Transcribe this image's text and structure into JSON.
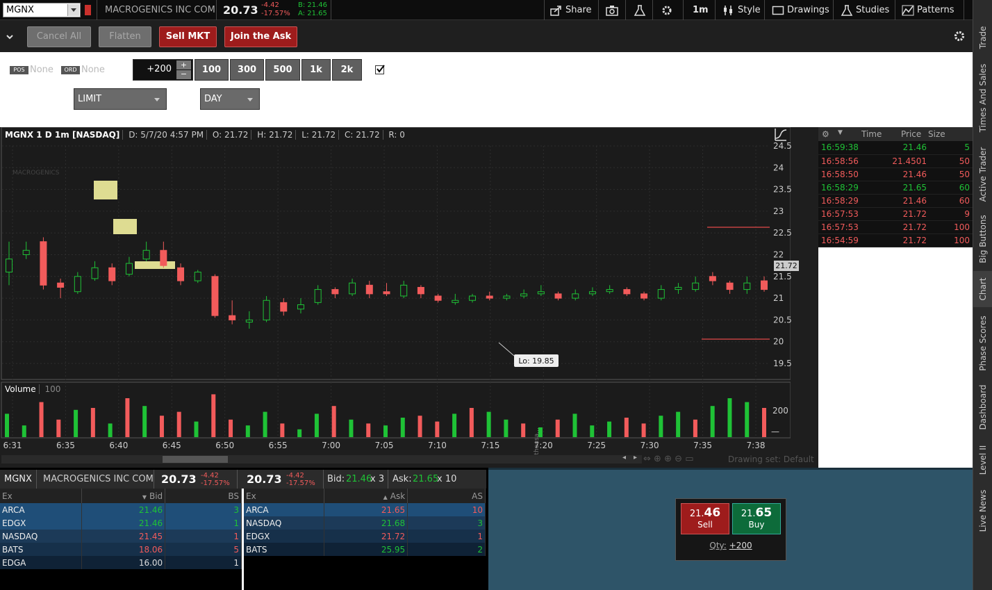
{
  "topbar": {
    "symbol": "MGNX",
    "company": "MACROGENICS INC COM",
    "last": "20.73",
    "change": "-4.42",
    "change_pct": "-17.57%",
    "bid_label": "B: 21.46",
    "ask_label": "A: 21.65",
    "share": "Share",
    "interval": "1m",
    "style": "Style",
    "drawings": "Drawings",
    "studies": "Studies",
    "patterns": "Patterns"
  },
  "order": {
    "cancel_all": "Cancel All",
    "flatten": "Flatten",
    "sell_mkt": "Sell MKT",
    "join_ask": "Join the Ask",
    "pos_tag": "POS",
    "pos_value": "None",
    "ord_tag": "ORD",
    "ord_value": "None",
    "qty": "+200",
    "qty_buttons": [
      "100",
      "300",
      "500",
      "1k",
      "2k"
    ],
    "order_type": "LIMIT",
    "tif": "DAY"
  },
  "chart": {
    "header": {
      "title": "MGNX 1 D 1m [NASDAQ]",
      "date": "D: 5/7/20 4:57 PM",
      "open": "O: 21.72",
      "high": "H: 21.72",
      "low": "L: 21.72",
      "close": "C: 21.72",
      "range": "R: 0"
    },
    "watermark": "MACROGENICS",
    "price_label": "21.72",
    "low_label": "Lo: 19.85",
    "volume_label": "Volume",
    "volume_value": "100",
    "volume_axis_label": "<thousa...",
    "volume_tick": "200",
    "drawing_set": "Drawing set: Default"
  },
  "chart_data": {
    "type": "candlestick",
    "y_ticks": [
      "24.5",
      "24",
      "23.5",
      "23",
      "22.5",
      "22",
      "21.5",
      "21",
      "20.5",
      "20",
      "19.5"
    ],
    "x_ticks": [
      "6:31",
      "6:35",
      "6:40",
      "6:45",
      "6:50",
      "6:55",
      "7:00",
      "7:05",
      "7:10",
      "7:15",
      "7:20",
      "7:25",
      "7:30",
      "7:35",
      "7:38"
    ],
    "candles": [
      {
        "o": 21.6,
        "c": 21.9,
        "h": 22.3,
        "l": 21.3
      },
      {
        "o": 22.0,
        "c": 22.1,
        "h": 22.3,
        "l": 21.9
      },
      {
        "o": 22.3,
        "c": 21.3,
        "h": 22.4,
        "l": 21.2
      },
      {
        "o": 21.35,
        "c": 21.25,
        "h": 21.45,
        "l": 21.0
      },
      {
        "o": 21.15,
        "c": 21.5,
        "h": 21.6,
        "l": 21.1
      },
      {
        "o": 21.45,
        "c": 21.7,
        "h": 21.85,
        "l": 21.4
      },
      {
        "o": 21.7,
        "c": 21.4,
        "h": 21.8,
        "l": 21.3
      },
      {
        "o": 21.55,
        "c": 21.8,
        "h": 21.95,
        "l": 21.5
      },
      {
        "o": 21.9,
        "c": 22.1,
        "h": 22.3,
        "l": 21.85
      },
      {
        "o": 22.1,
        "c": 21.75,
        "h": 22.3,
        "l": 21.7
      },
      {
        "o": 21.7,
        "c": 21.4,
        "h": 21.8,
        "l": 21.3
      },
      {
        "o": 21.4,
        "c": 21.6,
        "h": 21.65,
        "l": 21.35
      },
      {
        "o": 21.5,
        "c": 20.6,
        "h": 21.55,
        "l": 20.55
      },
      {
        "o": 20.6,
        "c": 20.5,
        "h": 20.95,
        "l": 20.4
      },
      {
        "o": 20.45,
        "c": 20.5,
        "h": 20.7,
        "l": 20.3
      },
      {
        "o": 20.5,
        "c": 20.95,
        "h": 21.05,
        "l": 20.45
      },
      {
        "o": 20.9,
        "c": 20.7,
        "h": 21.0,
        "l": 20.6
      },
      {
        "o": 20.75,
        "c": 20.85,
        "h": 21.0,
        "l": 20.65
      },
      {
        "o": 20.9,
        "c": 21.2,
        "h": 21.3,
        "l": 20.85
      },
      {
        "o": 21.2,
        "c": 21.1,
        "h": 21.25,
        "l": 21.0
      },
      {
        "o": 21.1,
        "c": 21.35,
        "h": 21.45,
        "l": 21.05
      },
      {
        "o": 21.3,
        "c": 21.1,
        "h": 21.4,
        "l": 21.0
      },
      {
        "o": 21.15,
        "c": 21.1,
        "h": 21.35,
        "l": 21.05
      },
      {
        "o": 21.05,
        "c": 21.3,
        "h": 21.4,
        "l": 21.0
      },
      {
        "o": 21.25,
        "c": 21.1,
        "h": 21.3,
        "l": 21.0
      },
      {
        "o": 21.05,
        "c": 20.95,
        "h": 21.1,
        "l": 20.9
      },
      {
        "o": 20.9,
        "c": 20.95,
        "h": 21.1,
        "l": 20.85
      },
      {
        "o": 20.95,
        "c": 21.05,
        "h": 21.1,
        "l": 20.9
      },
      {
        "o": 21.05,
        "c": 21.0,
        "h": 21.15,
        "l": 20.95
      },
      {
        "o": 21.0,
        "c": 21.05,
        "h": 21.1,
        "l": 20.95
      },
      {
        "o": 21.05,
        "c": 21.1,
        "h": 21.2,
        "l": 21.0
      },
      {
        "o": 21.1,
        "c": 21.15,
        "h": 21.3,
        "l": 21.05
      },
      {
        "o": 21.1,
        "c": 21.0,
        "h": 21.15,
        "l": 20.95
      },
      {
        "o": 21.0,
        "c": 21.1,
        "h": 21.2,
        "l": 20.95
      },
      {
        "o": 21.1,
        "c": 21.15,
        "h": 21.25,
        "l": 21.05
      },
      {
        "o": 21.15,
        "c": 21.2,
        "h": 21.3,
        "l": 21.1
      },
      {
        "o": 21.2,
        "c": 21.1,
        "h": 21.25,
        "l": 21.05
      },
      {
        "o": 21.1,
        "c": 21.0,
        "h": 21.15,
        "l": 20.95
      },
      {
        "o": 21.0,
        "c": 21.2,
        "h": 21.3,
        "l": 20.95
      },
      {
        "o": 21.2,
        "c": 21.25,
        "h": 21.35,
        "l": 21.1
      },
      {
        "o": 21.2,
        "c": 21.35,
        "h": 21.5,
        "l": 21.15
      },
      {
        "o": 21.5,
        "c": 21.4,
        "h": 21.6,
        "l": 21.3
      },
      {
        "o": 21.35,
        "c": 21.2,
        "h": 21.4,
        "l": 21.1
      },
      {
        "o": 21.2,
        "c": 21.35,
        "h": 21.5,
        "l": 21.1
      },
      {
        "o": 21.4,
        "c": 21.2,
        "h": 21.5,
        "l": 21.15
      }
    ],
    "volume_max": 200,
    "volumes": [
      120,
      60,
      180,
      90,
      140,
      150,
      70,
      200,
      160,
      110,
      130,
      80,
      220,
      90,
      60,
      130,
      70,
      40,
      120,
      160,
      90,
      70,
      60,
      100,
      110,
      80,
      120,
      150,
      130,
      90,
      70,
      50,
      90,
      120,
      60,
      80,
      100,
      70,
      110,
      130,
      90,
      160,
      200,
      180,
      150
    ],
    "volume_colors": [
      "up",
      "up",
      "down",
      "down",
      "up",
      "down",
      "up",
      "down",
      "up",
      "down",
      "down",
      "up",
      "down",
      "down",
      "up",
      "up",
      "down",
      "up",
      "up",
      "down",
      "up",
      "down",
      "up",
      "up",
      "down",
      "down",
      "up",
      "down",
      "up",
      "up",
      "down",
      "up",
      "down",
      "up",
      "up",
      "up",
      "down",
      "down",
      "up",
      "up",
      "down",
      "up",
      "up",
      "up",
      "down"
    ],
    "up_color": "#1fc236",
    "down_color": "#f25b5b"
  },
  "time_sales": {
    "headers": [
      "Time",
      "Price",
      "Size"
    ],
    "rows": [
      {
        "time": "16:59:38",
        "price": "21.46",
        "size": "5",
        "color": "#1fc236"
      },
      {
        "time": "16:58:56",
        "price": "21.4501",
        "size": "50",
        "color": "#f25b5b"
      },
      {
        "time": "16:58:50",
        "price": "21.46",
        "size": "50",
        "color": "#f25b5b"
      },
      {
        "time": "16:58:29",
        "price": "21.65",
        "size": "60",
        "color": "#1fc236"
      },
      {
        "time": "16:58:29",
        "price": "21.46",
        "size": "60",
        "color": "#f25b5b"
      },
      {
        "time": "16:57:53",
        "price": "21.72",
        "size": "9",
        "color": "#f25b5b"
      },
      {
        "time": "16:57:53",
        "price": "21.72",
        "size": "100",
        "color": "#f25b5b"
      },
      {
        "time": "16:54:59",
        "price": "21.72",
        "size": "100",
        "color": "#f25b5b"
      }
    ]
  },
  "level2": {
    "symbol": "MGNX",
    "company": "MACROGENICS INC COM",
    "last": "20.73",
    "change": "-4.42",
    "change_pct": "-17.57%",
    "last2": "20.73",
    "change2": "-4.42",
    "change_pct2": "-17.57%",
    "bid_text": "Bid:",
    "bid_price": "21.46",
    "bid_size": "x 3",
    "ask_text": "Ask:",
    "ask_price": "21.65",
    "ask_size": "x 10",
    "bid_headers": [
      "Ex",
      "Bid",
      "BS"
    ],
    "ask_headers": [
      "Ex",
      "Ask",
      "AS"
    ],
    "bids": [
      {
        "ex": "ARCA",
        "price": "21.46",
        "size": "3",
        "color": "#1fc236",
        "bg": "#1f4e78"
      },
      {
        "ex": "EDGX",
        "price": "21.46",
        "size": "1",
        "color": "#1fc236",
        "bg": "#1f4e78"
      },
      {
        "ex": "NASDAQ",
        "price": "21.45",
        "size": "1",
        "color": "#f25b5b",
        "bg": "#1c3a58"
      },
      {
        "ex": "BATS",
        "price": "18.06",
        "size": "5",
        "color": "#f25b5b",
        "bg": "#16304a"
      },
      {
        "ex": "EDGA",
        "price": "16.00",
        "size": "1",
        "color": "#dddddd",
        "bg": "#0f2236"
      }
    ],
    "asks": [
      {
        "ex": "ARCA",
        "price": "21.65",
        "size": "10",
        "color": "#f25b5b",
        "bg": "#1f4e78"
      },
      {
        "ex": "NASDAQ",
        "price": "21.68",
        "size": "3",
        "color": "#1fc236",
        "bg": "#1c3a58"
      },
      {
        "ex": "EDGX",
        "price": "21.72",
        "size": "1",
        "color": "#f25b5b",
        "bg": "#16304a"
      },
      {
        "ex": "BATS",
        "price": "25.95",
        "size": "2",
        "color": "#1fc236",
        "bg": "#0f2236"
      }
    ]
  },
  "big_buttons": {
    "sell_price_small": "21.",
    "sell_price_big": "46",
    "sell_label": "Sell",
    "buy_price_small": "21.",
    "buy_price_big": "65",
    "buy_label": "Buy",
    "qty_label": "Qty:",
    "qty_value": "+200"
  },
  "side_tabs": [
    "Trade",
    "Times And Sales",
    "Active Trader",
    "Big Buttons",
    "Chart",
    "Phase Scores",
    "Dashboard",
    "Level II",
    "Live News"
  ]
}
